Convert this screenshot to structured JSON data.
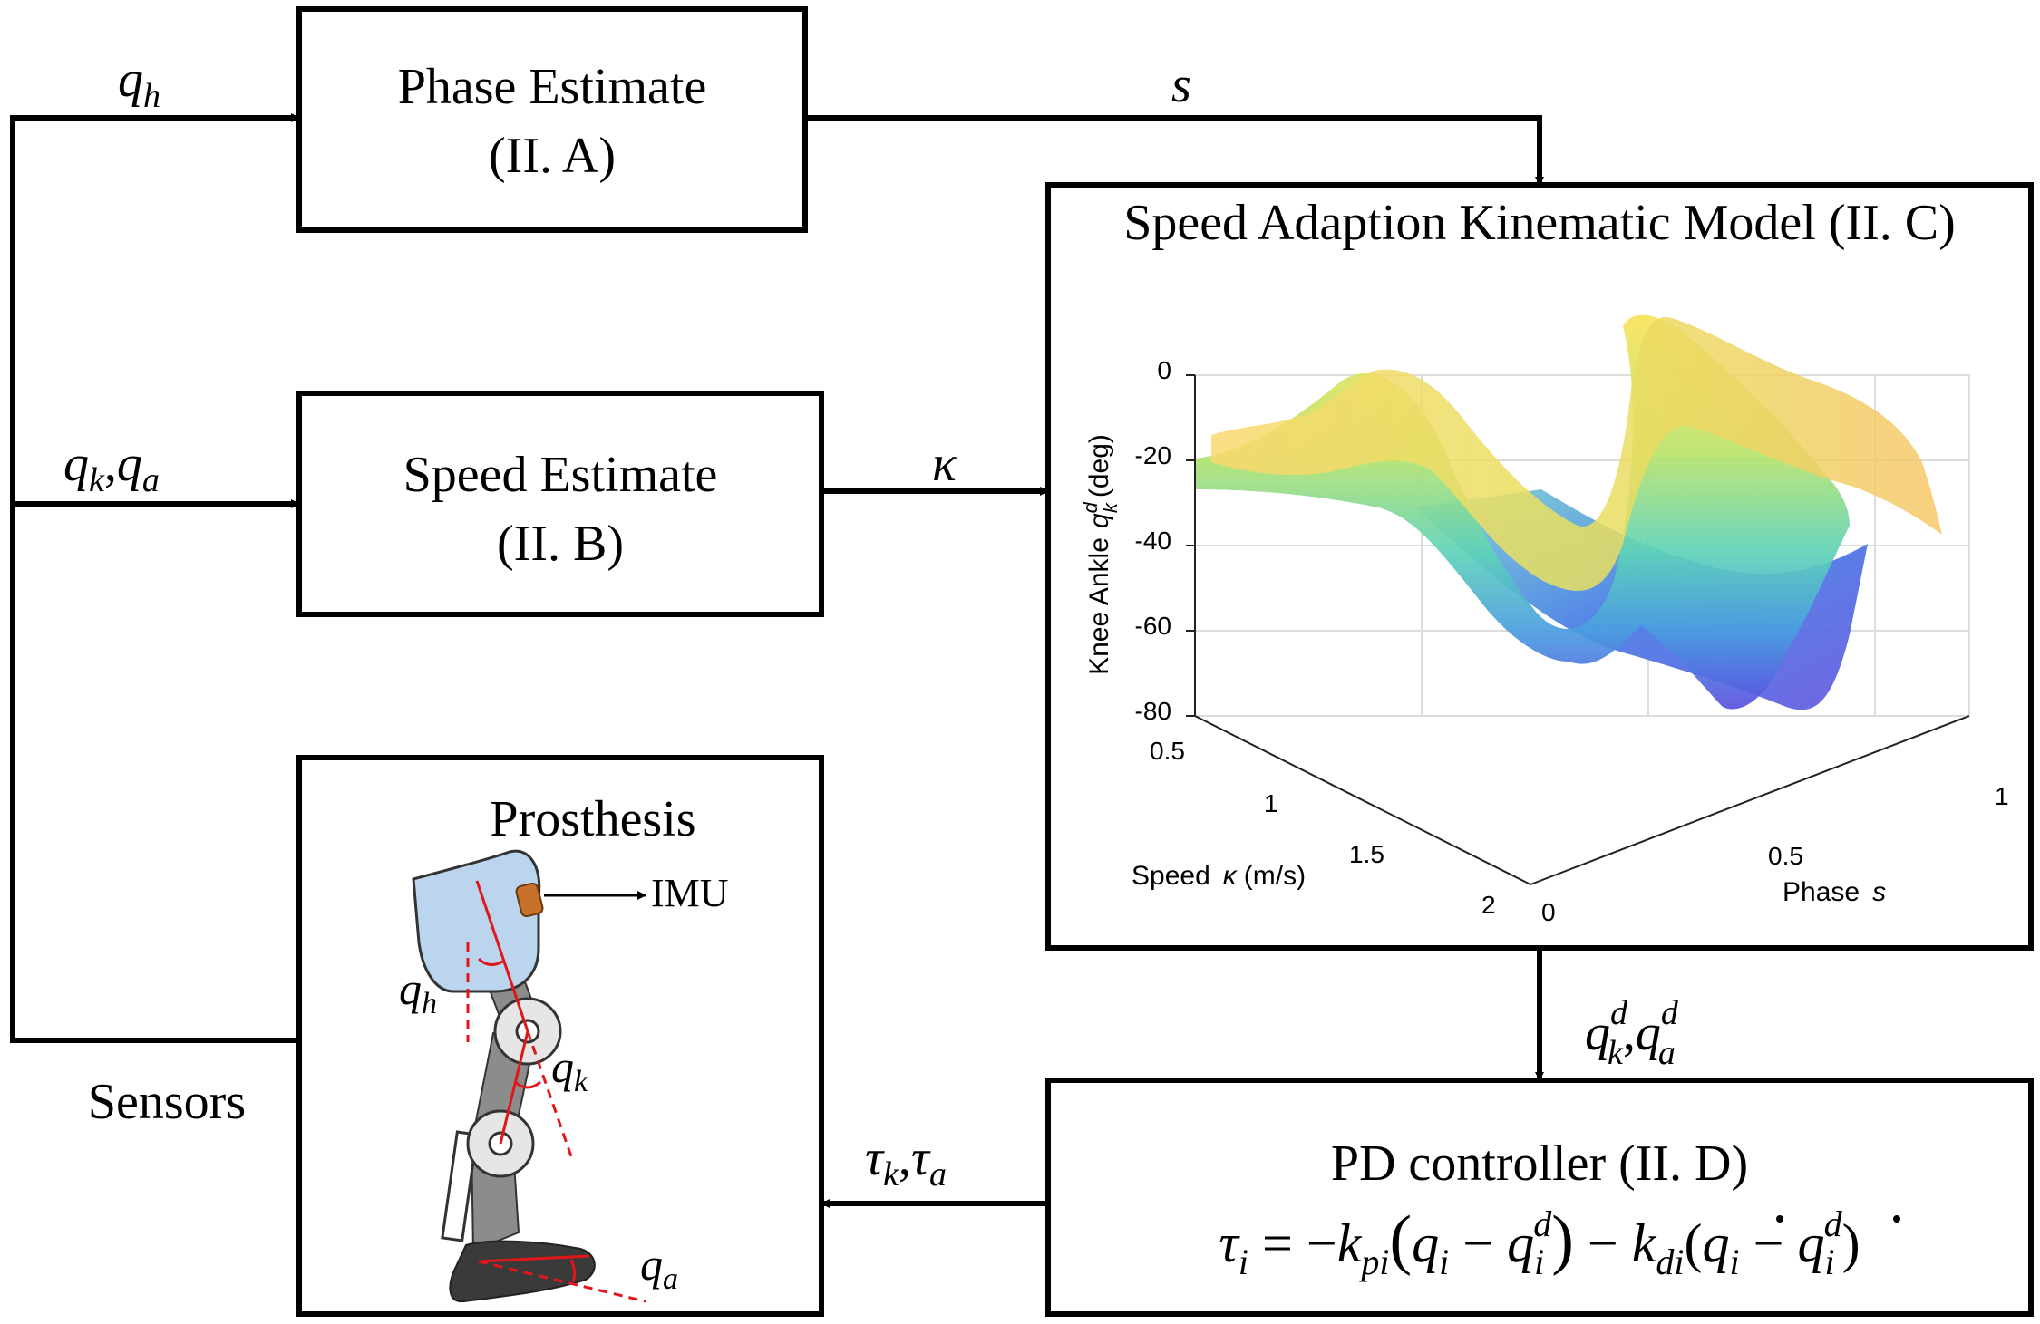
{
  "blocks": {
    "phase": {
      "line1": "Phase Estimate",
      "line2": "(II. A)"
    },
    "speed": {
      "line1": "Speed Estimate",
      "line2": "(II. B)"
    },
    "model": {
      "title": "Speed Adaption Kinematic Model (II. C)"
    },
    "prosthesis": {
      "title": "Prosthesis",
      "imu_label": "IMU"
    },
    "pd": {
      "line1": "PD controller (II. D)"
    }
  },
  "signals": {
    "qh": "q",
    "qh_sub": "h",
    "qk": "q",
    "qk_sub": "k",
    "qa": "q",
    "qa_sub": "a",
    "s": "s",
    "kappa": "κ",
    "qd_k_sub": "k",
    "qd_a_sub": "a",
    "qd_sup": "d",
    "tau": "τ",
    "tau_k_sub": "k",
    "tau_a_sub": "a",
    "comma": ","
  },
  "sensors_label": "Sensors",
  "pd_formula": {
    "tau": "τ",
    "i": "i",
    "eq": " = −",
    "k": "k",
    "pi": "pi",
    "di": "di",
    "q": "q",
    "d": "d",
    "minus": " − "
  },
  "colors": {
    "line": "#000000",
    "leg_fill": "#bcd5ee",
    "shank": "#8c8c8c",
    "foot": "#3a3a3a",
    "imu": "#c8712a",
    "angle_red": "#e0161b"
  },
  "chart_data": {
    "type": "surface",
    "zlabel": "Knee Ankle",
    "zlabel_var": "q",
    "zlabel_sub": "k",
    "zlabel_sup": "d",
    "zlabel_unit": "(deg)",
    "xlabel": "Phase",
    "xlabel_var": "s",
    "ylabel": "Speed",
    "ylabel_var": "κ",
    "ylabel_unit": "(m/s)",
    "z_ticks": [
      "0",
      "-20",
      "-40",
      "-60",
      "-80"
    ],
    "x_ticks": [
      "0",
      "0.5",
      "1"
    ],
    "y_ticks": [
      "0.5",
      "1",
      "1.5",
      "2"
    ],
    "zlim": [
      -80,
      0
    ],
    "xlim": [
      0,
      1
    ],
    "ylim": [
      0.5,
      2
    ],
    "grid": true
  }
}
